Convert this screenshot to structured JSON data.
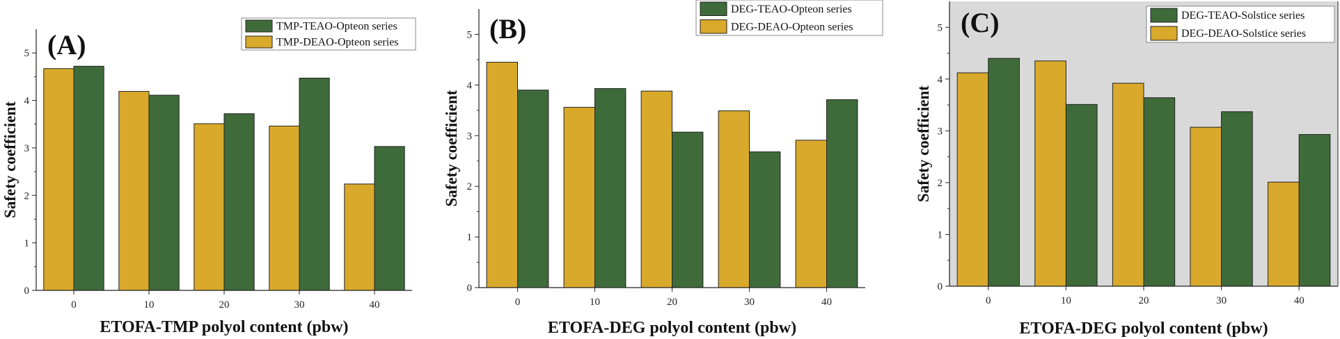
{
  "chart_data": [
    {
      "type": "bar",
      "panel_label": "(A)",
      "categories": [
        "0",
        "10",
        "20",
        "30",
        "40"
      ],
      "series": [
        {
          "name": "TMP-DEAO-Opteon series",
          "color": "#D9A92B",
          "values": [
            4.67,
            4.19,
            3.51,
            3.46,
            2.24
          ]
        },
        {
          "name": "TMP-TEAO-Opteon series",
          "color": "#3F6B3B",
          "values": [
            4.72,
            4.11,
            3.72,
            4.47,
            3.03
          ]
        }
      ],
      "legend_order": [
        1,
        0
      ],
      "xlabel": "ETOFA-TMP polyol content (pbw)",
      "ylabel": "Safety coefficient",
      "yticks": [
        "0",
        "1",
        "2",
        "3",
        "4",
        "5"
      ],
      "ylim": [
        0,
        5.5
      ],
      "background": "#ffffff"
    },
    {
      "type": "bar",
      "panel_label": "(B)",
      "categories": [
        "0",
        "10",
        "20",
        "30",
        "40"
      ],
      "series": [
        {
          "name": "DEG-DEAO-Opteon series",
          "color": "#D9A92B",
          "values": [
            4.45,
            3.56,
            3.88,
            3.49,
            2.91
          ]
        },
        {
          "name": "DEG-TEAO-Opteon series",
          "color": "#3F6B3B",
          "values": [
            3.9,
            3.93,
            3.07,
            2.68,
            3.71
          ]
        }
      ],
      "legend_order": [
        1,
        0
      ],
      "xlabel": "ETOFA-DEG polyol content (pbw)",
      "ylabel": "Safety coefficient",
      "yticks": [
        "0",
        "1",
        "2",
        "3",
        "4",
        "5"
      ],
      "ylim": [
        0,
        5.5
      ],
      "background": "#ffffff"
    },
    {
      "type": "bar",
      "panel_label": "(C)",
      "categories": [
        "0",
        "10",
        "20",
        "30",
        "40"
      ],
      "series": [
        {
          "name": "DEG-DEAO-Solstice series",
          "color": "#D9A92B",
          "values": [
            4.12,
            4.35,
            3.92,
            3.07,
            2.01
          ]
        },
        {
          "name": "DEG-TEAO-Solstice series",
          "color": "#3F6B3B",
          "values": [
            4.4,
            3.51,
            3.64,
            3.37,
            2.93
          ]
        }
      ],
      "legend_order": [
        1,
        0
      ],
      "xlabel": "ETOFA-DEG polyol content (pbw)",
      "ylabel": "Safety coefficient",
      "yticks": [
        "0",
        "1",
        "2",
        "3",
        "4",
        "5"
      ],
      "ylim": [
        0,
        5.5
      ],
      "background": "#d9d9d9"
    }
  ]
}
